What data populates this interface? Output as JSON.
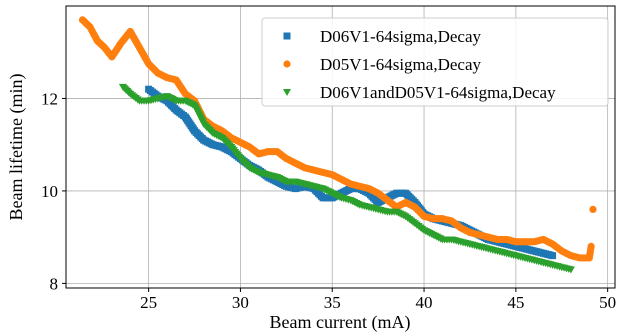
{
  "chart_data": {
    "type": "scatter",
    "title": "",
    "xlabel": "Beam current (mA)",
    "ylabel": "Beam lifetime (min)",
    "xlim": [
      20.5,
      50.4
    ],
    "ylim": [
      7.9,
      14.0
    ],
    "xticks": [
      25,
      30,
      35,
      40,
      45,
      50
    ],
    "yticks": [
      8,
      10,
      12
    ],
    "grid": true,
    "legend_position": "top-right",
    "series": [
      {
        "name": "D06V1-64sigma,Decay",
        "color": "#1f77b4",
        "marker": "square",
        "points": [
          [
            25.0,
            12.2
          ],
          [
            25.5,
            12.05
          ],
          [
            26.0,
            11.95
          ],
          [
            26.5,
            11.75
          ],
          [
            27.0,
            11.6
          ],
          [
            27.5,
            11.3
          ],
          [
            28.0,
            11.1
          ],
          [
            28.5,
            11.0
          ],
          [
            29.0,
            10.95
          ],
          [
            29.5,
            10.85
          ],
          [
            30.0,
            10.7
          ],
          [
            30.5,
            10.55
          ],
          [
            31.0,
            10.45
          ],
          [
            31.5,
            10.3
          ],
          [
            32.0,
            10.2
          ],
          [
            32.5,
            10.1
          ],
          [
            33.0,
            10.05
          ],
          [
            33.5,
            10.1
          ],
          [
            34.0,
            10.05
          ],
          [
            34.5,
            9.85
          ],
          [
            35.0,
            9.85
          ],
          [
            35.5,
            9.95
          ],
          [
            36.0,
            10.05
          ],
          [
            36.5,
            10.05
          ],
          [
            37.0,
            9.95
          ],
          [
            37.5,
            9.75
          ],
          [
            38.0,
            9.85
          ],
          [
            38.5,
            9.95
          ],
          [
            39.0,
            9.95
          ],
          [
            39.5,
            9.75
          ],
          [
            40.0,
            9.5
          ],
          [
            40.5,
            9.4
          ],
          [
            41.0,
            9.35
          ],
          [
            41.5,
            9.3
          ],
          [
            42.0,
            9.25
          ],
          [
            42.5,
            9.15
          ],
          [
            43.0,
            9.05
          ],
          [
            43.5,
            8.95
          ],
          [
            44.0,
            8.9
          ],
          [
            44.5,
            8.85
          ],
          [
            45.0,
            8.8
          ],
          [
            45.5,
            8.75
          ],
          [
            46.0,
            8.7
          ],
          [
            46.5,
            8.65
          ],
          [
            47.0,
            8.6
          ]
        ]
      },
      {
        "name": "D05V1-64sigma,Decay",
        "color": "#ff7f0e",
        "marker": "circle",
        "points": [
          [
            21.4,
            13.7
          ],
          [
            21.8,
            13.55
          ],
          [
            22.2,
            13.25
          ],
          [
            22.6,
            13.1
          ],
          [
            23.0,
            12.9
          ],
          [
            23.5,
            13.2
          ],
          [
            24.0,
            13.45
          ],
          [
            24.5,
            13.1
          ],
          [
            25.0,
            12.75
          ],
          [
            25.5,
            12.55
          ],
          [
            26.0,
            12.45
          ],
          [
            26.5,
            12.4
          ],
          [
            27.0,
            12.1
          ],
          [
            27.5,
            11.95
          ],
          [
            28.0,
            11.55
          ],
          [
            28.5,
            11.4
          ],
          [
            29.0,
            11.3
          ],
          [
            29.5,
            11.15
          ],
          [
            30.0,
            11.05
          ],
          [
            30.5,
            10.95
          ],
          [
            31.0,
            10.8
          ],
          [
            31.5,
            10.85
          ],
          [
            32.0,
            10.85
          ],
          [
            32.5,
            10.7
          ],
          [
            33.0,
            10.6
          ],
          [
            33.5,
            10.5
          ],
          [
            34.0,
            10.45
          ],
          [
            34.5,
            10.4
          ],
          [
            35.0,
            10.35
          ],
          [
            35.5,
            10.25
          ],
          [
            36.0,
            10.15
          ],
          [
            36.5,
            10.1
          ],
          [
            37.0,
            10.05
          ],
          [
            37.5,
            9.95
          ],
          [
            38.0,
            9.8
          ],
          [
            38.5,
            9.65
          ],
          [
            39.0,
            9.75
          ],
          [
            39.5,
            9.65
          ],
          [
            40.0,
            9.45
          ],
          [
            40.5,
            9.4
          ],
          [
            41.0,
            9.4
          ],
          [
            41.5,
            9.35
          ],
          [
            42.0,
            9.2
          ],
          [
            42.5,
            9.1
          ],
          [
            43.0,
            9.05
          ],
          [
            43.5,
            9.0
          ],
          [
            44.0,
            8.95
          ],
          [
            44.5,
            8.95
          ],
          [
            45.0,
            8.9
          ],
          [
            45.5,
            8.9
          ],
          [
            46.0,
            8.9
          ],
          [
            46.5,
            8.95
          ],
          [
            47.0,
            8.85
          ],
          [
            47.5,
            8.7
          ],
          [
            48.0,
            8.6
          ],
          [
            48.5,
            8.55
          ],
          [
            49.0,
            8.55
          ],
          [
            49.1,
            8.8
          ],
          [
            49.2,
            9.6
          ]
        ]
      },
      {
        "name": "D06V1andD05V1-64sigma,Decay",
        "color": "#2ca02c",
        "marker": "triangle_down",
        "points": [
          [
            23.6,
            12.25
          ],
          [
            24.0,
            12.1
          ],
          [
            24.5,
            11.95
          ],
          [
            25.0,
            11.95
          ],
          [
            25.5,
            12.0
          ],
          [
            26.0,
            12.05
          ],
          [
            26.5,
            11.95
          ],
          [
            27.0,
            11.95
          ],
          [
            27.5,
            11.85
          ],
          [
            28.0,
            11.45
          ],
          [
            28.5,
            11.25
          ],
          [
            29.0,
            11.15
          ],
          [
            29.5,
            10.95
          ],
          [
            30.0,
            10.7
          ],
          [
            30.5,
            10.5
          ],
          [
            31.0,
            10.4
          ],
          [
            31.5,
            10.35
          ],
          [
            32.0,
            10.3
          ],
          [
            32.5,
            10.2
          ],
          [
            33.0,
            10.2
          ],
          [
            33.5,
            10.15
          ],
          [
            34.0,
            10.1
          ],
          [
            34.5,
            10.05
          ],
          [
            35.0,
            9.95
          ],
          [
            35.5,
            9.85
          ],
          [
            36.0,
            9.8
          ],
          [
            36.5,
            9.7
          ],
          [
            37.0,
            9.65
          ],
          [
            37.5,
            9.6
          ],
          [
            38.0,
            9.55
          ],
          [
            38.5,
            9.55
          ],
          [
            39.0,
            9.45
          ],
          [
            39.5,
            9.3
          ],
          [
            40.0,
            9.15
          ],
          [
            40.5,
            9.05
          ],
          [
            41.0,
            8.95
          ],
          [
            41.5,
            8.95
          ],
          [
            42.0,
            8.9
          ],
          [
            42.5,
            8.85
          ],
          [
            43.0,
            8.8
          ],
          [
            43.5,
            8.75
          ],
          [
            44.0,
            8.7
          ],
          [
            44.5,
            8.65
          ],
          [
            45.0,
            8.6
          ],
          [
            45.5,
            8.55
          ],
          [
            46.0,
            8.5
          ],
          [
            46.5,
            8.45
          ],
          [
            47.0,
            8.4
          ],
          [
            47.5,
            8.35
          ],
          [
            48.0,
            8.3
          ]
        ]
      }
    ]
  }
}
